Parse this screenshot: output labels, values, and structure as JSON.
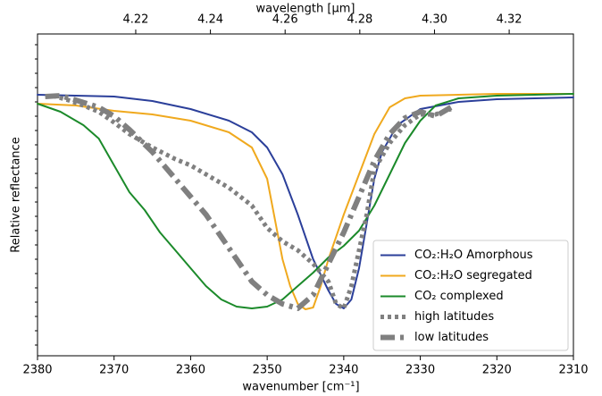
{
  "chart_data": {
    "type": "line",
    "xlabel": "wavenumber [cm⁻¹]",
    "x2label": "wavelength [μm]",
    "ylabel": "Relative reflectance",
    "xlim": [
      2380,
      2310
    ],
    "xticks": [
      2380,
      2370,
      2360,
      2350,
      2340,
      2330,
      2320,
      2310
    ],
    "x2lim": [
      4.1937,
      4.3372
    ],
    "x2ticks": [
      4.22,
      4.24,
      4.26,
      4.28,
      {
        "value": 4.3,
        "label": "4.30"
      },
      4.32
    ],
    "ylim": [
      0,
      360
    ],
    "legend": "lower right",
    "series": [
      {
        "name": "CO₂:H₂O Amorphous",
        "color": "#2b3f9a",
        "linestyle": "solid",
        "linewidth": 2,
        "x": [
          2380,
          2370,
          2365,
          2360,
          2355,
          2352,
          2350,
          2348,
          2346,
          2344,
          2342,
          2341,
          2340,
          2339,
          2338,
          2337,
          2336,
          2335,
          2333,
          2330,
          2325,
          2320,
          2310
        ],
        "values": [
          292,
          290,
          285,
          276,
          263,
          250,
          233,
          203,
          158,
          108,
          73,
          58,
          53,
          63,
          98,
          148,
          198,
          228,
          258,
          276,
          284,
          287,
          289
        ]
      },
      {
        "name": "CO₂:H₂O segregated",
        "color": "#f0a91e",
        "linestyle": "solid",
        "linewidth": 2,
        "x": [
          2380,
          2375,
          2370,
          2365,
          2360,
          2355,
          2352,
          2350,
          2349,
          2348,
          2347,
          2346,
          2345,
          2344,
          2343,
          2342,
          2340,
          2338,
          2336,
          2334,
          2332,
          2330,
          2320,
          2310
        ],
        "values": [
          282,
          280,
          274,
          270,
          263,
          250,
          233,
          198,
          153,
          108,
          78,
          58,
          52,
          54,
          78,
          108,
          158,
          203,
          248,
          278,
          288,
          291,
          293,
          293
        ]
      },
      {
        "name": "CO₂ complexed",
        "color": "#1b8a2a",
        "linestyle": "solid",
        "linewidth": 2,
        "x": [
          2380,
          2377,
          2374,
          2372,
          2370,
          2368,
          2366,
          2364,
          2362,
          2360,
          2358,
          2356,
          2354,
          2352,
          2350,
          2348,
          2346,
          2344,
          2342,
          2340,
          2338,
          2336,
          2334,
          2332,
          2330,
          2328,
          2325,
          2320,
          2310
        ],
        "values": [
          282,
          273,
          258,
          243,
          213,
          183,
          163,
          138,
          118,
          98,
          78,
          63,
          55,
          53,
          55,
          63,
          78,
          93,
          110,
          123,
          140,
          168,
          203,
          238,
          263,
          280,
          288,
          291,
          293
        ]
      },
      {
        "name": "high latitudes",
        "color": "#808080",
        "linestyle": "dotted",
        "linewidth": 5,
        "x": [
          2378,
          2376,
          2374,
          2372,
          2370,
          2368,
          2365,
          2362,
          2360,
          2358,
          2355,
          2352,
          2350,
          2348,
          2346,
          2344,
          2342,
          2341,
          2340,
          2339,
          2338,
          2337,
          2336,
          2334,
          2332,
          2330,
          2328,
          2326
        ],
        "values": [
          291,
          286,
          280,
          273,
          261,
          248,
          233,
          220,
          213,
          203,
          188,
          168,
          143,
          128,
          118,
          103,
          83,
          58,
          53,
          78,
          118,
          158,
          208,
          238,
          258,
          270,
          270,
          276
        ]
      },
      {
        "name": "low latitudes",
        "color": "#808080",
        "linestyle": "dashdot",
        "linewidth": 6,
        "x": [
          2379,
          2377,
          2375,
          2372,
          2370,
          2368,
          2365,
          2362,
          2360,
          2358,
          2356,
          2354,
          2352,
          2350,
          2348,
          2346,
          2344,
          2342,
          2340,
          2338,
          2336,
          2334,
          2332,
          2330,
          2328,
          2326
        ],
        "values": [
          290,
          291,
          286,
          278,
          268,
          253,
          228,
          198,
          178,
          158,
          133,
          108,
          83,
          68,
          58,
          53,
          68,
          103,
          138,
          178,
          218,
          248,
          266,
          273,
          268,
          278
        ]
      }
    ]
  }
}
